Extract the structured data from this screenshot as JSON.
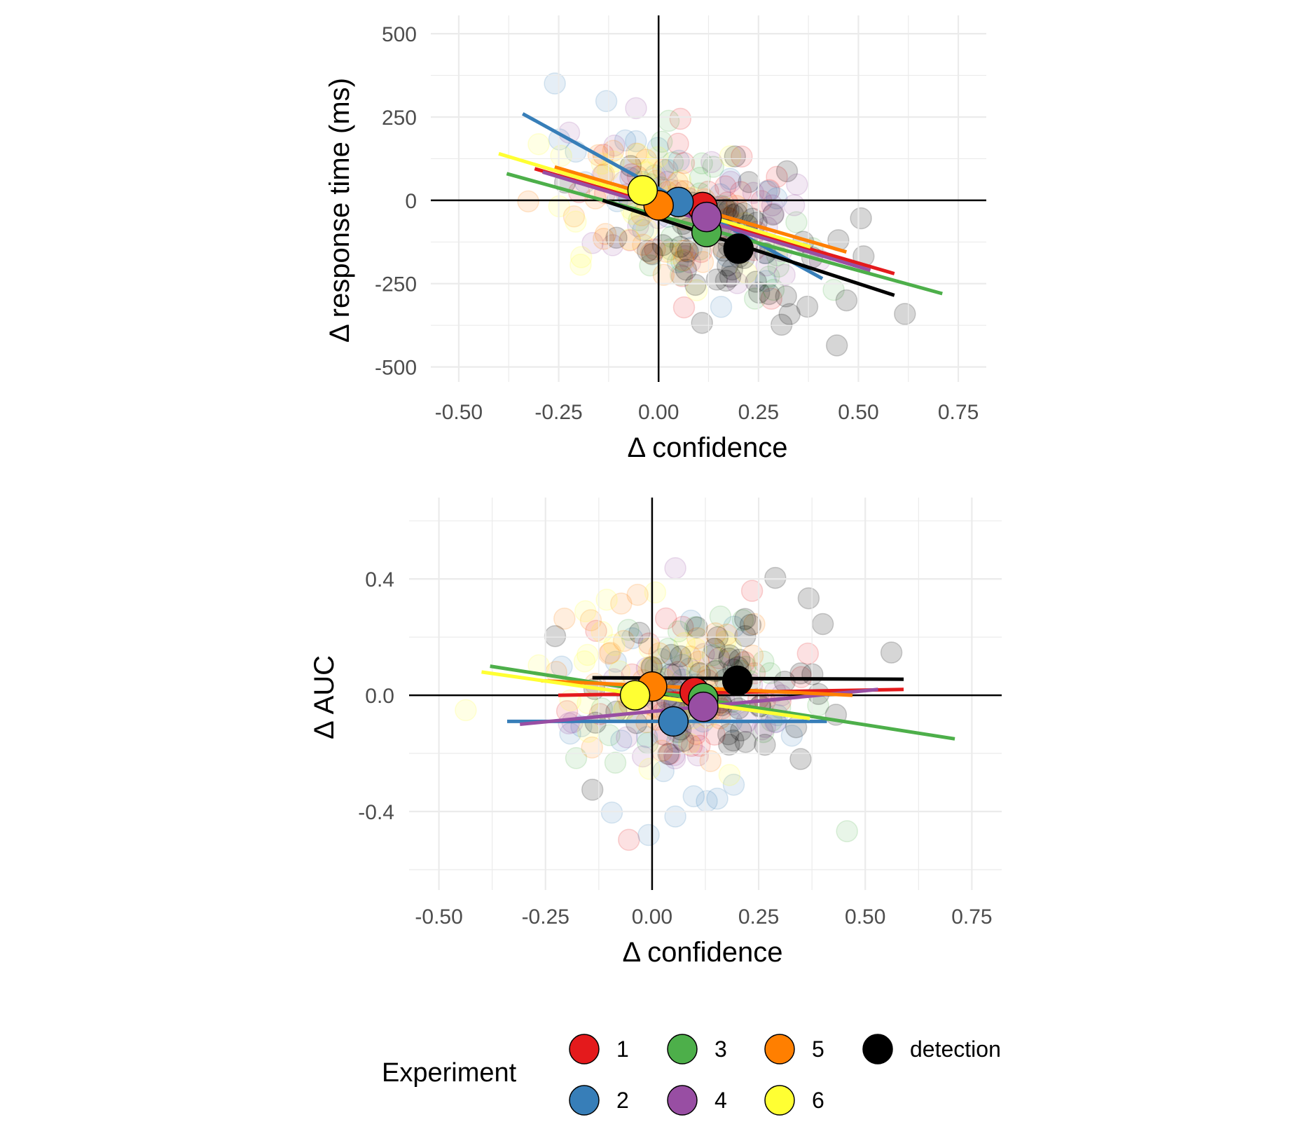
{
  "legend": {
    "title": "Experiment",
    "entries": [
      {
        "label": "1",
        "color": "#E41A1C"
      },
      {
        "label": "2",
        "color": "#377EB8"
      },
      {
        "label": "3",
        "color": "#4DAF4A"
      },
      {
        "label": "4",
        "color": "#984EA3"
      },
      {
        "label": "5",
        "color": "#FF7F00"
      },
      {
        "label": "6",
        "color": "#FFFF33"
      },
      {
        "label": "detection",
        "color": "#000000"
      }
    ]
  },
  "chart_data": [
    {
      "type": "scatter",
      "title": "",
      "xlabel": "Δ confidence",
      "ylabel": "Δ response time (ms)",
      "xlim": [
        -0.57,
        0.82
      ],
      "ylim": [
        -545,
        555
      ],
      "x_ticks": [
        "-0.50",
        "-0.25",
        "0.00",
        "0.25",
        "0.50",
        "0.75"
      ],
      "x_tick_values": [
        -0.5,
        -0.25,
        0,
        0.25,
        0.5,
        0.75
      ],
      "y_ticks": [
        "500",
        "250",
        "0",
        "-250",
        "-500"
      ],
      "y_tick_values": [
        500,
        250,
        0,
        -250,
        -500
      ],
      "grid": true,
      "reference_lines": {
        "x": 0,
        "y": 0
      },
      "series": [
        {
          "name": "1",
          "color": "#E41A1C",
          "mean": [
            0.11,
            -20
          ],
          "fit_line": [
            [
              -0.31,
              95
            ],
            [
              0.59,
              -220
            ]
          ]
        },
        {
          "name": "2",
          "color": "#377EB8",
          "mean": [
            0.05,
            -5
          ],
          "fit_line": [
            [
              -0.34,
              260
            ],
            [
              0.41,
              -235
            ]
          ]
        },
        {
          "name": "3",
          "color": "#4DAF4A",
          "mean": [
            0.12,
            -95
          ],
          "fit_line": [
            [
              -0.38,
              80
            ],
            [
              0.71,
              -280
            ]
          ]
        },
        {
          "name": "4",
          "color": "#984EA3",
          "mean": [
            0.12,
            -50
          ],
          "fit_line": [
            [
              -0.29,
              85
            ],
            [
              0.53,
              -210
            ]
          ]
        },
        {
          "name": "5",
          "color": "#FF7F00",
          "mean": [
            0.0,
            -15
          ],
          "fit_line": [
            [
              -0.26,
              100
            ],
            [
              0.47,
              -155
            ]
          ]
        },
        {
          "name": "6",
          "color": "#FFFF33",
          "mean": [
            -0.04,
            30
          ],
          "fit_line": [
            [
              -0.4,
              140
            ],
            [
              0.38,
              -140
            ]
          ]
        },
        {
          "name": "detection",
          "color": "#000000",
          "mean": [
            0.2,
            -145
          ],
          "fit_line": [
            [
              -0.14,
              0
            ],
            [
              0.59,
              -285
            ]
          ]
        }
      ]
    },
    {
      "type": "scatter",
      "title": "",
      "xlabel": "Δ confidence",
      "ylabel": "Δ AUC",
      "xlim": [
        -0.57,
        0.82
      ],
      "ylim": [
        -0.67,
        0.68
      ],
      "x_ticks": [
        "-0.50",
        "-0.25",
        "0.00",
        "0.25",
        "0.50",
        "0.75"
      ],
      "x_tick_values": [
        -0.5,
        -0.25,
        0,
        0.25,
        0.5,
        0.75
      ],
      "y_ticks": [
        "0.4",
        "0.0",
        "-0.4"
      ],
      "y_tick_values": [
        0.4,
        0,
        -0.4
      ],
      "grid": true,
      "reference_lines": {
        "x": 0,
        "y": 0
      },
      "series": [
        {
          "name": "1",
          "color": "#E41A1C",
          "mean": [
            0.1,
            0.01
          ],
          "fit_line": [
            [
              -0.22,
              0.0
            ],
            [
              0.59,
              0.02
            ]
          ]
        },
        {
          "name": "2",
          "color": "#377EB8",
          "mean": [
            0.05,
            -0.09
          ],
          "fit_line": [
            [
              -0.34,
              -0.09
            ],
            [
              0.41,
              -0.09
            ]
          ]
        },
        {
          "name": "3",
          "color": "#4DAF4A",
          "mean": [
            0.12,
            -0.01
          ],
          "fit_line": [
            [
              -0.38,
              0.1
            ],
            [
              0.71,
              -0.15
            ]
          ]
        },
        {
          "name": "4",
          "color": "#984EA3",
          "mean": [
            0.12,
            -0.04
          ],
          "fit_line": [
            [
              -0.31,
              -0.1
            ],
            [
              0.53,
              0.02
            ]
          ]
        },
        {
          "name": "5",
          "color": "#FF7F00",
          "mean": [
            0.0,
            0.03
          ],
          "fit_line": [
            [
              -0.26,
              0.05
            ],
            [
              0.47,
              0.0
            ]
          ]
        },
        {
          "name": "6",
          "color": "#FFFF33",
          "mean": [
            -0.04,
            0.0
          ],
          "fit_line": [
            [
              -0.4,
              0.08
            ],
            [
              0.37,
              -0.08
            ]
          ]
        },
        {
          "name": "detection",
          "color": "#000000",
          "mean": [
            0.2,
            0.05
          ],
          "fit_line": [
            [
              -0.14,
              0.06
            ],
            [
              0.59,
              0.055
            ]
          ]
        }
      ]
    }
  ]
}
